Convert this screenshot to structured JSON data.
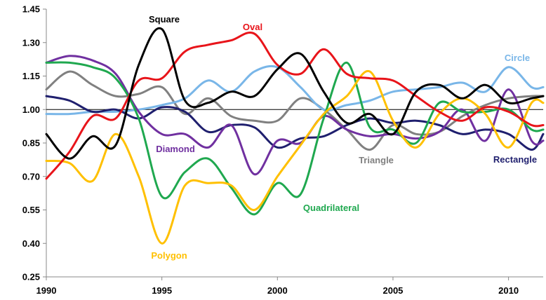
{
  "chart_data": {
    "type": "line",
    "title": "",
    "xlabel": "",
    "ylabel": "",
    "xlim": [
      1990,
      2011.5
    ],
    "ylim": [
      0.25,
      1.45
    ],
    "x_ticks": [
      "1990",
      "1995",
      "2000",
      "2005",
      "2010"
    ],
    "y_ticks": [
      "0.25",
      "0.40",
      "0.55",
      "0.70",
      "0.85",
      "1.00",
      "1.15",
      "1.30",
      "1.45"
    ],
    "reference_line": 1.0,
    "grid": false,
    "legend": "labels placed next to lines",
    "x": [
      1990,
      1991,
      1992,
      1993,
      1994,
      1995,
      1996,
      1997,
      1998,
      1999,
      2000,
      2001,
      2002,
      2003,
      2004,
      2005,
      2006,
      2007,
      2008,
      2009,
      2010,
      2011,
      2011.5
    ],
    "series": [
      {
        "name": "Square",
        "color": "#000000",
        "values": [
          0.89,
          0.78,
          0.88,
          0.84,
          1.2,
          1.36,
          1.04,
          1.03,
          1.08,
          1.06,
          1.18,
          1.25,
          1.08,
          0.94,
          0.98,
          0.89,
          1.08,
          1.11,
          1.05,
          1.11,
          1.03,
          1.05,
          1.06
        ]
      },
      {
        "name": "Oval",
        "color": "#e8141a",
        "values": [
          0.69,
          0.81,
          0.97,
          0.96,
          1.13,
          1.14,
          1.26,
          1.29,
          1.31,
          1.34,
          1.2,
          1.16,
          1.27,
          1.16,
          1.14,
          1.13,
          1.06,
          0.99,
          0.95,
          1.01,
          0.99,
          0.93,
          0.93
        ]
      },
      {
        "name": "Circle",
        "color": "#79b6e8",
        "values": [
          0.98,
          0.98,
          0.99,
          0.99,
          1.0,
          1.02,
          1.05,
          1.13,
          1.08,
          1.17,
          1.19,
          1.1,
          1.0,
          1.02,
          1.04,
          1.08,
          1.09,
          1.1,
          1.12,
          1.08,
          1.19,
          1.1,
          1.1
        ]
      },
      {
        "name": "Diamond",
        "color": "#7030a0",
        "values": [
          1.21,
          1.24,
          1.22,
          1.16,
          0.99,
          0.89,
          0.89,
          0.83,
          0.93,
          0.71,
          0.86,
          0.85,
          0.97,
          0.91,
          0.88,
          0.89,
          0.87,
          0.9,
          1.0,
          0.86,
          1.09,
          0.86,
          0.86
        ]
      },
      {
        "name": "Triangle",
        "color": "#808080",
        "values": [
          1.09,
          1.17,
          1.11,
          1.06,
          1.07,
          1.1,
          0.98,
          1.05,
          0.97,
          0.95,
          0.95,
          1.05,
          1.0,
          0.91,
          0.82,
          0.93,
          0.89,
          0.9,
          0.97,
          1.02,
          1.05,
          1.06,
          1.06
        ]
      },
      {
        "name": "Rectangle",
        "color": "#1f1f6e",
        "values": [
          1.06,
          1.04,
          0.99,
          1.0,
          0.96,
          1.01,
          0.99,
          0.9,
          0.93,
          0.92,
          0.83,
          0.87,
          0.88,
          0.93,
          0.96,
          0.94,
          0.95,
          0.93,
          0.89,
          0.91,
          0.89,
          0.82,
          0.89
        ]
      },
      {
        "name": "Quadrilateral",
        "color": "#1fa84f",
        "values": [
          1.21,
          1.21,
          1.19,
          1.14,
          0.96,
          0.61,
          0.72,
          0.78,
          0.65,
          0.53,
          0.67,
          0.62,
          0.96,
          1.21,
          0.92,
          0.91,
          0.85,
          1.03,
          0.99,
          0.99,
          1.0,
          0.91,
          0.91
        ]
      },
      {
        "name": "Polygon",
        "color": "#ffc000",
        "values": [
          0.77,
          0.76,
          0.68,
          0.89,
          0.7,
          0.4,
          0.66,
          0.67,
          0.66,
          0.55,
          0.7,
          0.84,
          0.98,
          1.06,
          1.17,
          0.95,
          0.83,
          0.98,
          1.05,
          0.98,
          0.83,
          1.03,
          1.03
        ]
      }
    ]
  }
}
